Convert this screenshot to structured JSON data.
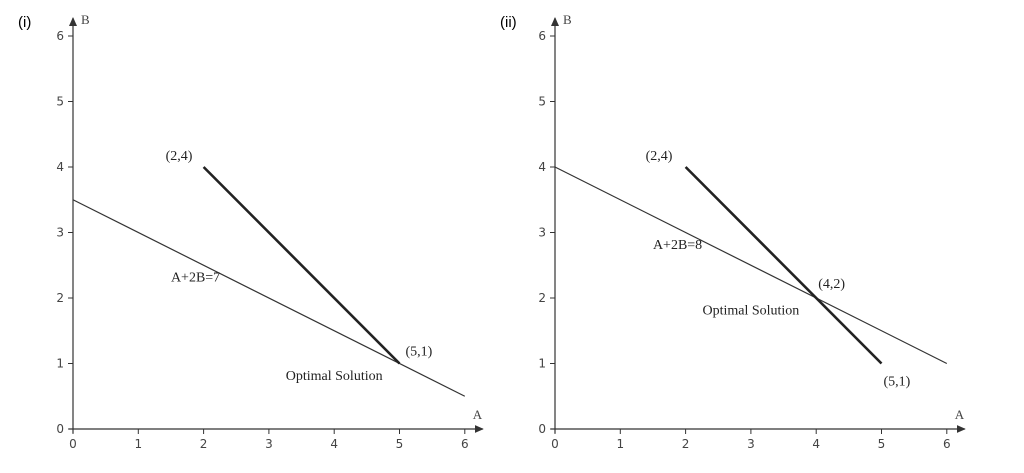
{
  "panels": [
    {
      "tag": "(i)",
      "chart_data": {
        "type": "line",
        "xlabel": "A",
        "ylabel": "B",
        "xlim": [
          0,
          6
        ],
        "ylim": [
          0,
          6
        ],
        "xticks": [
          "0",
          "1",
          "2",
          "3",
          "4",
          "5",
          "6"
        ],
        "yticks": [
          "0",
          "1",
          "2",
          "3",
          "4",
          "5",
          "6"
        ],
        "series": [
          {
            "name": "A+2B=7",
            "points": [
              [
                0,
                3.5
              ],
              [
                6,
                0.5
              ]
            ],
            "color": "#333333",
            "weight": "thin"
          },
          {
            "points": [
              [
                2,
                4
              ],
              [
                5,
                1
              ]
            ],
            "color": "#222222",
            "weight": "thick"
          }
        ],
        "annotations": [
          {
            "text": "(2,4)",
            "x": 2,
            "y": 4
          },
          {
            "text": "(5,1)",
            "x": 5,
            "y": 1
          },
          {
            "text": "A+2B=7",
            "x": 1.5,
            "y": 2.25
          },
          {
            "text": "Optimal Solution",
            "x": 4,
            "y": 0.75
          }
        ]
      }
    },
    {
      "tag": "(ii)",
      "chart_data": {
        "type": "line",
        "xlabel": "A",
        "ylabel": "B",
        "xlim": [
          0,
          6
        ],
        "ylim": [
          0,
          6
        ],
        "xticks": [
          "0",
          "1",
          "2",
          "3",
          "4",
          "5",
          "6"
        ],
        "yticks": [
          "0",
          "1",
          "2",
          "3",
          "4",
          "5",
          "6"
        ],
        "series": [
          {
            "name": "A+2B=8",
            "points": [
              [
                0,
                4
              ],
              [
                6,
                1
              ]
            ],
            "color": "#333333",
            "weight": "thin"
          },
          {
            "points": [
              [
                2,
                4
              ],
              [
                5,
                1
              ]
            ],
            "color": "#222222",
            "weight": "thick"
          }
        ],
        "annotations": [
          {
            "text": "(2,4)",
            "x": 2,
            "y": 4
          },
          {
            "text": "(4,2)",
            "x": 4,
            "y": 2
          },
          {
            "text": "(5,1)",
            "x": 5,
            "y": 1
          },
          {
            "text": "A+2B=8",
            "x": 1.5,
            "y": 2.75
          },
          {
            "text": "Optimal Solution",
            "x": 3,
            "y": 1.75
          }
        ]
      }
    }
  ]
}
